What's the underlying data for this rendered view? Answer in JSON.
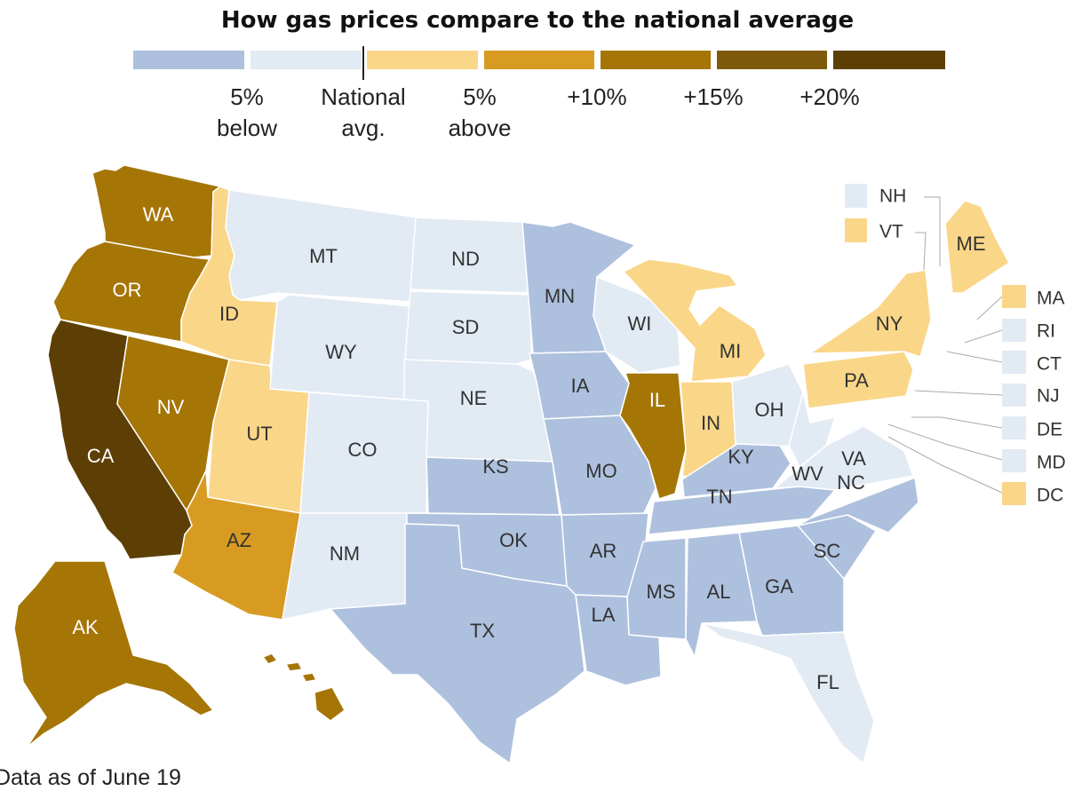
{
  "title": "How gas prices compare to the national average",
  "colors": {
    "below5": "#adc0de",
    "near_below": "#e2eaf3",
    "above5": "#fad688",
    "p10": "#d89b22",
    "p15": "#a57506",
    "p20": "#7e5a0c",
    "p25": "#5d3f05",
    "stroke": "#ffffff",
    "callout_stroke": "#aaaaaa"
  },
  "legend": {
    "bins": [
      "below5",
      "near_below",
      "above5",
      "p10",
      "p15",
      "p20",
      "p25"
    ],
    "labels": {
      "below5": "5%\nbelow",
      "national": "National\navg.",
      "above5": "5%\nabove",
      "p10": "+10%",
      "p15": "+15%",
      "p20": "+20%"
    }
  },
  "states": [
    {
      "code": "WA",
      "bin": "p15"
    },
    {
      "code": "OR",
      "bin": "p15"
    },
    {
      "code": "CA",
      "bin": "p25"
    },
    {
      "code": "NV",
      "bin": "p15"
    },
    {
      "code": "ID",
      "bin": "above5"
    },
    {
      "code": "UT",
      "bin": "above5"
    },
    {
      "code": "AZ",
      "bin": "p10"
    },
    {
      "code": "MT",
      "bin": "near_below"
    },
    {
      "code": "WY",
      "bin": "near_below"
    },
    {
      "code": "CO",
      "bin": "near_below"
    },
    {
      "code": "NM",
      "bin": "near_below"
    },
    {
      "code": "ND",
      "bin": "near_below"
    },
    {
      "code": "SD",
      "bin": "near_below"
    },
    {
      "code": "NE",
      "bin": "near_below"
    },
    {
      "code": "KS",
      "bin": "below5"
    },
    {
      "code": "OK",
      "bin": "below5"
    },
    {
      "code": "TX",
      "bin": "below5"
    },
    {
      "code": "MN",
      "bin": "below5"
    },
    {
      "code": "IA",
      "bin": "below5"
    },
    {
      "code": "MO",
      "bin": "below5"
    },
    {
      "code": "AR",
      "bin": "below5"
    },
    {
      "code": "LA",
      "bin": "below5"
    },
    {
      "code": "WI",
      "bin": "near_below"
    },
    {
      "code": "IL",
      "bin": "p15"
    },
    {
      "code": "MI",
      "bin": "above5"
    },
    {
      "code": "IN",
      "bin": "above5"
    },
    {
      "code": "OH",
      "bin": "near_below"
    },
    {
      "code": "KY",
      "bin": "below5"
    },
    {
      "code": "TN",
      "bin": "below5"
    },
    {
      "code": "MS",
      "bin": "below5"
    },
    {
      "code": "AL",
      "bin": "below5"
    },
    {
      "code": "GA",
      "bin": "below5"
    },
    {
      "code": "FL",
      "bin": "near_below"
    },
    {
      "code": "SC",
      "bin": "below5"
    },
    {
      "code": "NC",
      "bin": "below5"
    },
    {
      "code": "VA",
      "bin": "near_below"
    },
    {
      "code": "WV",
      "bin": "near_below"
    },
    {
      "code": "PA",
      "bin": "above5"
    },
    {
      "code": "NY",
      "bin": "above5"
    },
    {
      "code": "ME",
      "bin": "above5"
    },
    {
      "code": "AK",
      "bin": "p15"
    },
    {
      "code": "HI",
      "bin": "p15"
    }
  ],
  "callouts": [
    {
      "code": "NH",
      "bin": "near_below"
    },
    {
      "code": "VT",
      "bin": "above5"
    },
    {
      "code": "MA",
      "bin": "above5"
    },
    {
      "code": "RI",
      "bin": "near_below"
    },
    {
      "code": "CT",
      "bin": "near_below"
    },
    {
      "code": "NJ",
      "bin": "near_below"
    },
    {
      "code": "DE",
      "bin": "near_below"
    },
    {
      "code": "MD",
      "bin": "near_below"
    },
    {
      "code": "DC",
      "bin": "above5"
    }
  ],
  "note": "Data as of June 19"
}
